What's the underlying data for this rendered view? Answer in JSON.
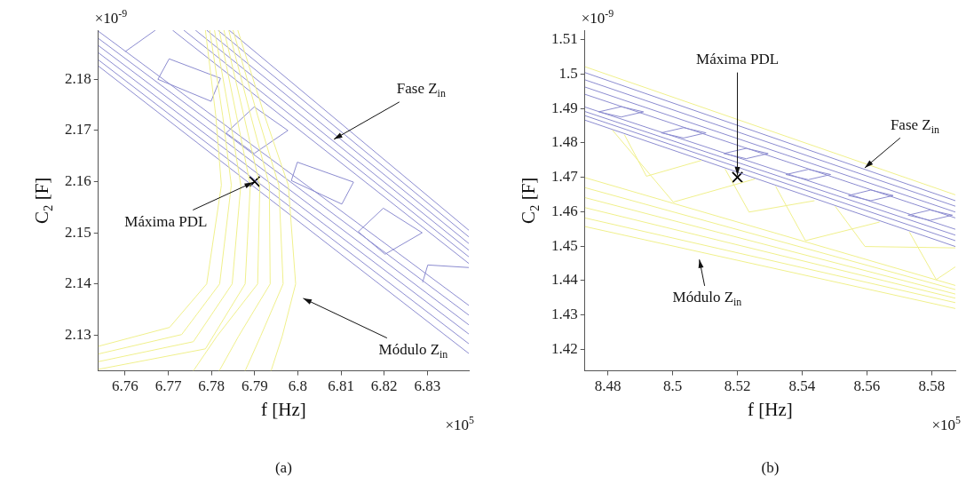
{
  "chart_data": [
    {
      "type": "line",
      "title": "(a)",
      "xlabel": "f [Hz]",
      "ylabel": "C$_{2}$ [F]",
      "marker": "none",
      "xlim": [
        6.7538,
        6.8396
      ],
      "ylim": [
        2.123,
        2.1896
      ],
      "xticks": [
        6.76,
        6.77,
        6.78,
        6.79,
        6.8,
        6.81,
        6.82,
        6.83
      ],
      "yticks": [
        2.13,
        2.14,
        2.15,
        2.16,
        2.17,
        2.18
      ],
      "series": [
        {
          "color": "#f0f08c",
          "x": [
            6.7786,
            6.781,
            6.7823,
            6.7789,
            6.7703,
            6.7538
          ],
          "values": [
            2.1896,
            2.1729,
            2.1593,
            2.14,
            2.1315,
            2.1278
          ]
        },
        {
          "color": "#f0f08c",
          "x": [
            6.7796,
            6.7826,
            6.7846,
            6.7819,
            6.7731,
            6.7538
          ],
          "values": [
            2.1896,
            2.1729,
            2.1593,
            2.14,
            2.1301,
            2.1263
          ]
        },
        {
          "color": "#f0f08c",
          "x": [
            6.7807,
            6.7842,
            6.7868,
            6.7848,
            6.7758,
            6.7538
          ],
          "values": [
            2.1896,
            2.1729,
            2.1593,
            2.14,
            2.1287,
            2.1248
          ]
        },
        {
          "color": "#f0f08c",
          "x": [
            6.7818,
            6.7858,
            6.789,
            6.7878,
            6.7786,
            6.7538
          ],
          "values": [
            2.1896,
            2.1729,
            2.1593,
            2.14,
            2.1273,
            2.1233
          ]
        },
        {
          "color": "#f0f08c",
          "x": [
            6.7829,
            6.7875,
            6.7912,
            6.7907,
            6.7813,
            6.7758
          ],
          "values": [
            2.1896,
            2.1729,
            2.1593,
            2.14,
            2.1298,
            2.123
          ]
        },
        {
          "color": "#f0f08c",
          "x": [
            6.784,
            6.7891,
            6.7934,
            6.7936,
            6.7863,
            6.7818
          ],
          "values": [
            2.1896,
            2.1729,
            2.1593,
            2.14,
            2.1298,
            2.123
          ]
        },
        {
          "color": "#f0f08c",
          "x": [
            6.785,
            6.7907,
            6.7956,
            6.7966,
            6.7914,
            6.7878
          ],
          "values": [
            2.1896,
            2.1729,
            2.1593,
            2.14,
            2.1298,
            2.123
          ]
        },
        {
          "color": "#f0f08c",
          "x": [
            6.7861,
            6.7923,
            6.7978,
            6.7995,
            6.7964,
            6.7938
          ],
          "values": [
            2.1896,
            2.1729,
            2.1593,
            2.14,
            2.1298,
            2.123
          ]
        },
        {
          "color": "#8c8cd0",
          "x": [
            6.7538,
            6.8396
          ],
          "values": [
            2.1894,
            2.1358
          ]
        },
        {
          "color": "#8c8cd0",
          "x": [
            6.7538,
            6.8396
          ],
          "values": [
            2.188,
            2.1339
          ]
        },
        {
          "color": "#8c8cd0",
          "x": [
            6.7538,
            6.8396
          ],
          "values": [
            2.1866,
            2.132
          ]
        },
        {
          "color": "#8c8cd0",
          "x": [
            6.7538,
            6.8396
          ],
          "values": [
            2.1852,
            2.1302
          ]
        },
        {
          "color": "#8c8cd0",
          "x": [
            6.7538,
            6.8396
          ],
          "values": [
            2.1838,
            2.1283
          ]
        },
        {
          "color": "#8c8cd0",
          "x": [
            6.7538,
            6.8396
          ],
          "values": [
            2.1826,
            2.1264
          ]
        },
        {
          "color": "#8c8cd0",
          "x": [
            6.7841,
            6.8396
          ],
          "values": [
            2.1896,
            2.1505
          ]
        },
        {
          "color": "#8c8cd0",
          "x": [
            6.7815,
            6.8396
          ],
          "values": [
            2.1896,
            2.1492
          ]
        },
        {
          "color": "#8c8cd0",
          "x": [
            6.7789,
            6.8396
          ],
          "values": [
            2.1896,
            2.1479
          ]
        },
        {
          "color": "#8c8cd0",
          "x": [
            6.7763,
            6.8396
          ],
          "values": [
            2.1896,
            2.1466
          ]
        },
        {
          "color": "#8c8cd0",
          "x": [
            6.7736,
            6.8396
          ],
          "values": [
            2.1896,
            2.1453
          ]
        },
        {
          "color": "#8c8cd0",
          "x": [
            6.771,
            6.8396
          ],
          "values": [
            2.1896,
            2.144
          ]
        },
        {
          "color": "#8c8cd0",
          "x": [
            6.7676,
            6.7702,
            6.7821
          ],
          "values": [
            2.18,
            2.184,
            2.1802
          ]
        },
        {
          "color": "#8c8cd0",
          "x": [
            6.7676,
            6.7799,
            6.7821
          ],
          "values": [
            2.18,
            2.1757,
            2.1802
          ]
        },
        {
          "color": "#8c8cd0",
          "x": [
            6.7834,
            6.7899,
            6.7977
          ],
          "values": [
            2.1695,
            2.1746,
            2.17
          ]
        },
        {
          "color": "#8c8cd0",
          "x": [
            6.7834,
            6.7899,
            6.7977
          ],
          "values": [
            2.1695,
            2.1655,
            2.17
          ]
        },
        {
          "color": "#8c8cd0",
          "x": [
            6.7985,
            6.7999,
            6.8129
          ],
          "values": [
            2.1602,
            2.1638,
            2.1599
          ]
        },
        {
          "color": "#8c8cd0",
          "x": [
            6.7985,
            6.8102,
            6.8129
          ],
          "values": [
            2.1602,
            2.1556,
            2.1599
          ]
        },
        {
          "color": "#8c8cd0",
          "x": [
            6.814,
            6.8198,
            6.8288
          ],
          "values": [
            2.1502,
            2.1548,
            2.15
          ]
        },
        {
          "color": "#8c8cd0",
          "x": [
            6.814,
            6.8202,
            6.8288
          ],
          "values": [
            2.1502,
            2.1458,
            2.15
          ]
        },
        {
          "color": "#8c8cd0",
          "x": [
            6.76,
            6.767
          ],
          "values": [
            2.1854,
            2.1896
          ]
        },
        {
          "color": "#8c8cd0",
          "x": [
            6.8289,
            6.8301,
            6.8396
          ],
          "values": [
            2.1403,
            2.1437,
            2.1432
          ]
        },
        {
          "type": "scatter",
          "marker": "cross",
          "color": "#000000",
          "x": [
            6.79
          ],
          "values": [
            2.16
          ]
        }
      ],
      "annotations": [
        "×10$^{-9}$",
        "×10$^{5}$",
        "Módulo Z$_{in}$",
        {
          "text": "Fase Z$_{in}$",
          "x": 6.808,
          "y": 2.1681
        },
        {
          "text": "Máxima PDL",
          "x": 6.79,
          "y": 2.16
        }
      ]
    },
    {
      "type": "line",
      "title": "(b)",
      "xlabel": "f [Hz]",
      "ylabel": "C$_{2}$ [F]",
      "marker": "none",
      "xlim": [
        8.4729,
        8.5873
      ],
      "ylim": [
        1.4138,
        1.5127
      ],
      "xticks": [
        8.48,
        8.5,
        8.52,
        8.54,
        8.56,
        8.58
      ],
      "yticks": [
        1.42,
        1.43,
        1.44,
        1.45,
        1.46,
        1.47,
        1.48,
        1.49,
        1.5,
        1.51
      ],
      "series": [
        {
          "color": "#f0f08c",
          "x": [
            8.4729,
            8.5873
          ],
          "values": [
            1.5021,
            1.4649
          ]
        },
        {
          "color": "#f0f08c",
          "x": [
            8.4729,
            8.5873
          ],
          "values": [
            1.4699,
            1.4386
          ]
        },
        {
          "color": "#f0f08c",
          "x": [
            8.4729,
            8.5873
          ],
          "values": [
            1.467,
            1.4374
          ]
        },
        {
          "color": "#f0f08c",
          "x": [
            8.4729,
            8.5873
          ],
          "values": [
            1.4641,
            1.4361
          ]
        },
        {
          "color": "#f0f08c",
          "x": [
            8.4729,
            8.5873
          ],
          "values": [
            1.4612,
            1.4349
          ]
        },
        {
          "color": "#f0f08c",
          "x": [
            8.4729,
            8.5873
          ],
          "values": [
            1.4582,
            1.4336
          ]
        },
        {
          "color": "#f0f08c",
          "x": [
            8.4729,
            8.5873
          ],
          "values": [
            1.4557,
            1.4319
          ]
        },
        {
          "color": "#f0f08c",
          "x": [
            8.4851,
            8.4919,
            8.5089
          ],
          "values": [
            1.4824,
            1.4703,
            1.4749
          ]
        },
        {
          "color": "#f0f08c",
          "x": [
            8.4814,
            8.5002,
            8.5254
          ],
          "values": [
            1.4837,
            1.4628,
            1.4695
          ]
        },
        {
          "color": "#f0f08c",
          "x": [
            8.5162,
            8.5236,
            8.5438
          ],
          "values": [
            1.4724,
            1.4599,
            1.4632
          ]
        },
        {
          "color": "#f0f08c",
          "x": [
            8.5318,
            8.541,
            8.5639
          ],
          "values": [
            1.4674,
            1.4516,
            1.457
          ]
        },
        {
          "color": "#f0f08c",
          "x": [
            8.5502,
            8.5594,
            8.5873
          ],
          "values": [
            1.4616,
            1.4499,
            1.4495
          ]
        },
        {
          "color": "#f0f08c",
          "x": [
            8.5731,
            8.5814,
            8.5873
          ],
          "values": [
            1.4541,
            1.4403,
            1.444
          ]
        },
        {
          "color": "#8c8cd0",
          "x": [
            8.4729,
            8.5873
          ],
          "values": [
            1.5004,
            1.4632
          ]
        },
        {
          "color": "#8c8cd0",
          "x": [
            8.4729,
            8.5873
          ],
          "values": [
            1.4983,
            1.4616
          ]
        },
        {
          "color": "#8c8cd0",
          "x": [
            8.4729,
            8.5873
          ],
          "values": [
            1.4962,
            1.4599
          ]
        },
        {
          "color": "#8c8cd0",
          "x": [
            8.4729,
            8.5873
          ],
          "values": [
            1.4941,
            1.4582
          ]
        },
        {
          "color": "#8c8cd0",
          "x": [
            8.4729,
            8.5873
          ],
          "values": [
            1.4904,
            1.4549
          ]
        },
        {
          "color": "#8c8cd0",
          "x": [
            8.4729,
            8.5873
          ],
          "values": [
            1.4891,
            1.4532
          ]
        },
        {
          "color": "#8c8cd0",
          "x": [
            8.4729,
            8.5873
          ],
          "values": [
            1.4879,
            1.4516
          ]
        },
        {
          "color": "#8c8cd0",
          "x": [
            8.4729,
            8.5873
          ],
          "values": [
            1.4866,
            1.4499
          ]
        },
        {
          "color": "#8c8cd0",
          "x": [
            8.4772,
            8.4841,
            8.491
          ],
          "values": [
            1.489,
            1.4905,
            1.489
          ]
        },
        {
          "color": "#8c8cd0",
          "x": [
            8.4772,
            8.4841,
            8.491
          ],
          "values": [
            1.489,
            1.4875,
            1.489
          ]
        },
        {
          "color": "#8c8cd0",
          "x": [
            8.4965,
            8.5034,
            8.5103
          ],
          "values": [
            1.4829,
            1.4844,
            1.4829
          ]
        },
        {
          "color": "#8c8cd0",
          "x": [
            8.4965,
            8.5034,
            8.5103
          ],
          "values": [
            1.4829,
            1.4814,
            1.4829
          ]
        },
        {
          "color": "#8c8cd0",
          "x": [
            8.5158,
            8.5227,
            8.5295
          ],
          "values": [
            1.4769,
            1.4784,
            1.4769
          ]
        },
        {
          "color": "#8c8cd0",
          "x": [
            8.5158,
            8.5227,
            8.5295
          ],
          "values": [
            1.4769,
            1.4754,
            1.4769
          ]
        },
        {
          "color": "#8c8cd0",
          "x": [
            8.535,
            8.5419,
            8.5488
          ],
          "values": [
            1.4708,
            1.4723,
            1.4708
          ]
        },
        {
          "color": "#8c8cd0",
          "x": [
            8.535,
            8.5419,
            8.5488
          ],
          "values": [
            1.4708,
            1.4693,
            1.4708
          ]
        },
        {
          "color": "#8c8cd0",
          "x": [
            8.5543,
            8.5612,
            8.5681
          ],
          "values": [
            1.4647,
            1.4663,
            1.4647
          ]
        },
        {
          "color": "#8c8cd0",
          "x": [
            8.5543,
            8.5612,
            8.5681
          ],
          "values": [
            1.4647,
            1.4632,
            1.4647
          ]
        },
        {
          "color": "#8c8cd0",
          "x": [
            8.5727,
            8.5795,
            8.5864
          ],
          "values": [
            1.459,
            1.4605,
            1.459
          ]
        },
        {
          "color": "#8c8cd0",
          "x": [
            8.5727,
            8.5795,
            8.5864
          ],
          "values": [
            1.459,
            1.4575,
            1.459
          ]
        },
        {
          "type": "scatter",
          "marker": "cross",
          "color": "#000000",
          "x": [
            8.52
          ],
          "values": [
            1.47
          ]
        }
      ],
      "annotations": [
        "×10$^{-9}$",
        "×10$^{5}$",
        "Módulo Z$_{in}$",
        {
          "text": "Máxima PDL",
          "x": 8.52,
          "y": 1.47
        },
        {
          "text": "Fase Z$_{in}$",
          "x": 8.5589,
          "y": 1.4724
        }
      ]
    }
  ]
}
